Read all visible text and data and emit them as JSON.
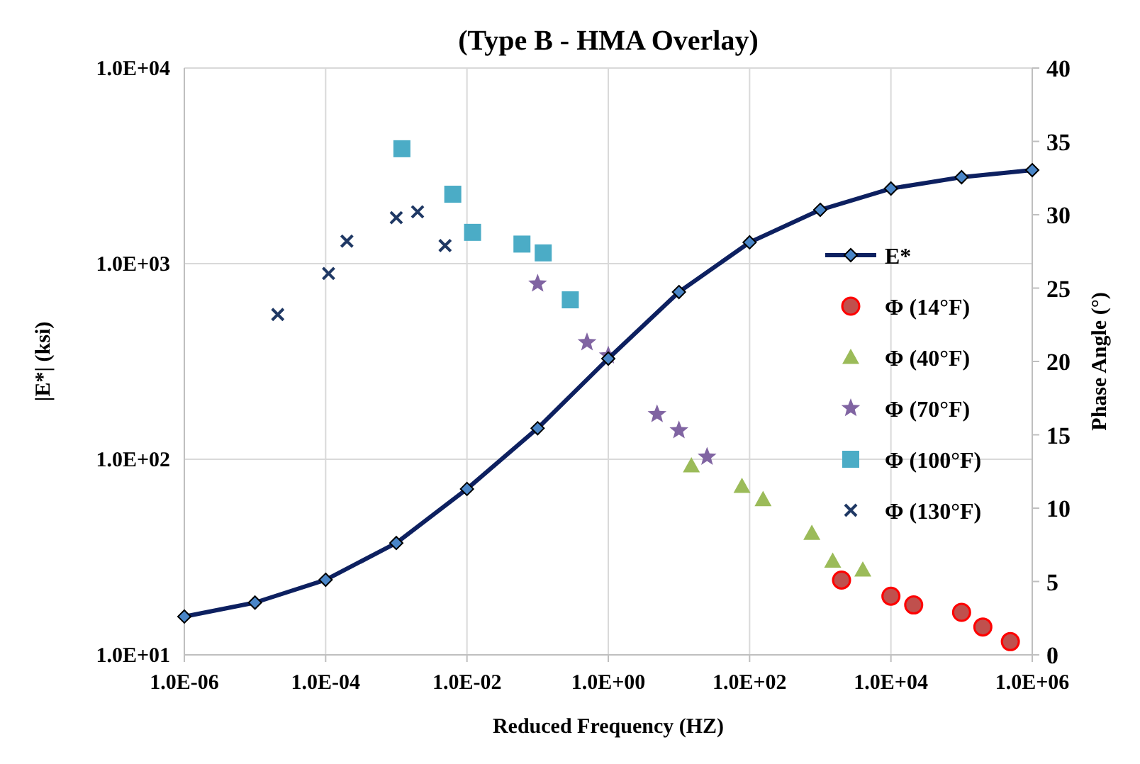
{
  "chart_data": {
    "type": "scatter",
    "title": "(Type B - HMA Overlay)",
    "xlabel": "Reduced Frequency (HZ)",
    "ylabel": "|E*| (ksi)",
    "y2label": "Phase Angle (°)",
    "log": "xy",
    "grid": true,
    "legend": "right",
    "xlim": [
      1e-06,
      1000000.0
    ],
    "xticks": [
      {
        "value": 1e-06,
        "label": "1.0E-06"
      },
      {
        "value": 0.0001,
        "label": "1.0E-04"
      },
      {
        "value": 0.01,
        "label": "1.0E-02"
      },
      {
        "value": 1,
        "label": "1.0E+00"
      },
      {
        "value": 100,
        "label": "1.0E+02"
      },
      {
        "value": 10000,
        "label": "1.0E+04"
      },
      {
        "value": 1000000.0,
        "label": "1.0E+06"
      }
    ],
    "ylim": [
      10,
      10000
    ],
    "yticks": [
      {
        "value": 10,
        "label": "1.0E+01"
      },
      {
        "value": 100,
        "label": "1.0E+02"
      },
      {
        "value": 1000,
        "label": "1.0E+03"
      },
      {
        "value": 10000,
        "label": "1.0E+04"
      }
    ],
    "y2lim": [
      0,
      40
    ],
    "y2ticks": [
      0,
      5,
      10,
      15,
      20,
      25,
      30,
      35,
      40
    ],
    "series": [
      {
        "name": "E*",
        "type": "line",
        "marker": "diamond",
        "line_style": "solid",
        "color": "#0d2060",
        "x": [
          1e-06,
          1e-05,
          0.0001,
          0.001,
          0.01,
          0.1,
          1,
          10,
          100,
          1000,
          10000,
          100000,
          1000000.0
        ],
        "values": [
          15.7,
          18.5,
          24.2,
          37.3,
          70.5,
          144,
          327,
          716,
          1285,
          1884,
          2421,
          2767,
          3006
        ]
      },
      {
        "name": "Φ (14°F)",
        "type": "scatter",
        "marker": "circle",
        "axis": "y2",
        "color": "#c0504d",
        "x": [
          2000,
          10000,
          21000,
          100000,
          200000,
          490000
        ],
        "values": [
          5.1,
          4.0,
          3.4,
          2.9,
          1.9,
          0.9
        ]
      },
      {
        "name": "Φ (40°F)",
        "type": "scatter",
        "marker": "triangle",
        "axis": "y2",
        "color": "#9bbb59",
        "x": [
          15,
          78,
          155,
          760,
          1500,
          4000
        ],
        "values": [
          12.9,
          11.5,
          10.6,
          8.3,
          6.4,
          5.8
        ]
      },
      {
        "name": "Φ (70°F)",
        "type": "scatter",
        "marker": "star",
        "axis": "y2",
        "color": "#8064a2",
        "x": [
          0.1,
          0.5,
          1,
          4.9,
          10,
          25
        ],
        "values": [
          25.3,
          21.3,
          20.4,
          16.4,
          15.3,
          13.5
        ]
      },
      {
        "name": "Φ (100°F)",
        "type": "scatter",
        "marker": "square",
        "axis": "y2",
        "color": "#4bacc6",
        "x": [
          0.0012,
          0.0063,
          0.012,
          0.06,
          0.12,
          0.29
        ],
        "values": [
          34.5,
          31.4,
          28.8,
          28.0,
          27.4,
          24.2
        ]
      },
      {
        "name": "Φ (130°F)",
        "type": "scatter",
        "marker": "cross",
        "axis": "y2",
        "color": "#1f3864",
        "x": [
          2.1e-05,
          0.00011,
          0.0002,
          0.001,
          0.002,
          0.0049
        ],
        "values": [
          23.2,
          26.0,
          28.2,
          29.8,
          30.2,
          27.9
        ]
      }
    ]
  }
}
